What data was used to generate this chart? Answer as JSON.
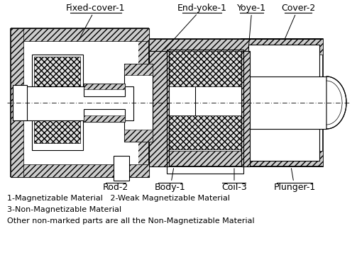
{
  "fig_width": 5.03,
  "fig_height": 3.6,
  "dpi": 100,
  "bg_color": "#ffffff",
  "line_color": "#000000",
  "legend_lines": [
    "1-Magnetizable Material   2-Weak Magnetizable Material",
    "3-Non-Magnetizable Material",
    "Other non-marked parts are all the Non-Magnetizable Material"
  ],
  "label_fontsize": 9,
  "legend_fontsize": 8,
  "hatch_color": "#aaaaaa",
  "hatch_bg": "#d8d8d8",
  "coil_bg": "#e8e8e8"
}
